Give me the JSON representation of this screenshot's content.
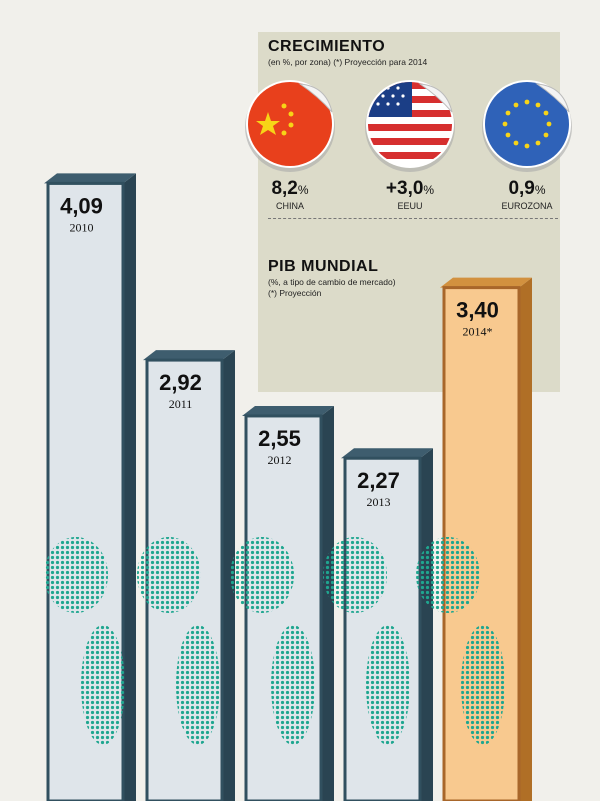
{
  "growth": {
    "title": "CRECIMIENTO",
    "subtitle": "(en %, por zona) (*) Proyección para 2014",
    "unit_symbol": "%",
    "zones": [
      {
        "name": "CHINA",
        "value": "8,2",
        "flag": "china-flag"
      },
      {
        "name": "EEUU",
        "value": "+3,0",
        "flag": "usa-flag"
      },
      {
        "name": "EUROZONA",
        "value": "0,9",
        "flag": "eu-flag"
      }
    ]
  },
  "gdp": {
    "title": "PIB MUNDIAL",
    "subtitle_line1": "(%, a tipo de cambio de mercado)",
    "subtitle_line2": "(*) Proyección"
  },
  "chart_data": {
    "type": "bar",
    "categories": [
      "2010",
      "2011",
      "2012",
      "2013",
      "2014*"
    ],
    "values": [
      4.09,
      2.92,
      2.55,
      2.27,
      3.4
    ],
    "labels": [
      "4,09",
      "2,92",
      "2,55",
      "2,27",
      "3,40"
    ],
    "projected": [
      false,
      false,
      false,
      false,
      true
    ],
    "title": "PIB MUNDIAL",
    "xlabel": "",
    "ylabel": "",
    "colors": {
      "face": "#dfe5ea",
      "side": "#2a4452",
      "top": "#3e5d6e",
      "projected_face": "#f8c98f",
      "projected_side": "#b06f26",
      "projected_top": "#d2913f",
      "map_dots": "#1fa690"
    }
  }
}
